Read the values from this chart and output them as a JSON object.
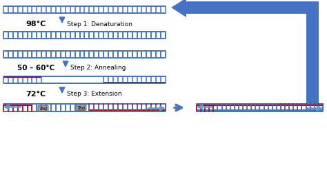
{
  "bg_color": "#ffffff",
  "blue": "#4472C4",
  "red": "#C00000",
  "lblue": "#5B9BD5",
  "arr_blue": "#4472C4",
  "step1_label": "Step 1: Denaturation",
  "step2_label": "Step 2: Annealing",
  "step3_label": "Step 3: Extension",
  "temp1": "98°C",
  "temp2": "50 – 60°C",
  "temp3": "72°C",
  "taq_color": "#999999",
  "taq_text": "Taq",
  "fig_w": 4.74,
  "fig_h": 2.51,
  "dpi": 100
}
